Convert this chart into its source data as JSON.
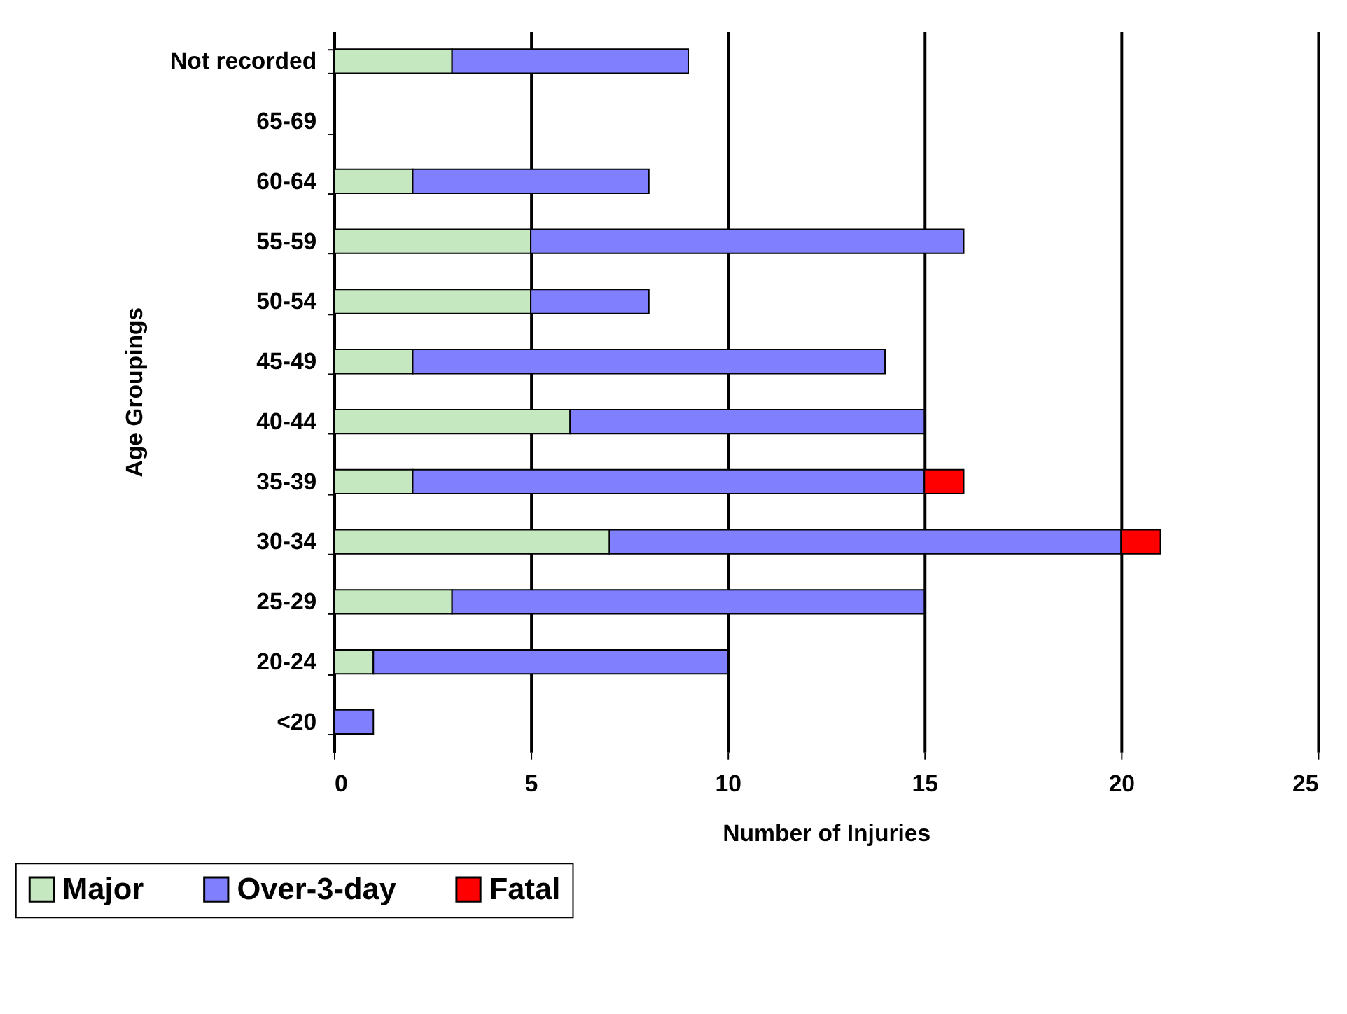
{
  "chart_data": {
    "type": "bar",
    "orientation": "horizontal",
    "stacked": true,
    "xlabel": "Number of Injuries",
    "ylabel": "Age Groupings",
    "categories": [
      "Not recorded",
      "65-69",
      "60-64",
      "55-59",
      "50-54",
      "45-49",
      "40-44",
      "35-39",
      "30-34",
      "25-29",
      "20-24",
      "<20"
    ],
    "series": [
      {
        "name": "Major",
        "color": "#c6e8c0",
        "values": [
          3,
          null,
          2,
          5,
          5,
          2,
          6,
          2,
          7,
          3,
          1,
          null
        ]
      },
      {
        "name": "Over-3-day",
        "color": "#8080ff",
        "values": [
          6,
          null,
          6,
          11,
          3,
          12,
          9,
          13,
          13,
          12,
          9,
          1
        ]
      },
      {
        "name": "Fatal",
        "color": "#ff0000",
        "values": [
          null,
          null,
          null,
          null,
          null,
          null,
          null,
          1,
          1,
          null,
          null,
          null
        ]
      }
    ],
    "xlim": [
      0,
      25
    ],
    "xticks": [
      0,
      5,
      10,
      15,
      20,
      25
    ],
    "grid": "x",
    "legend": "bottom left"
  }
}
